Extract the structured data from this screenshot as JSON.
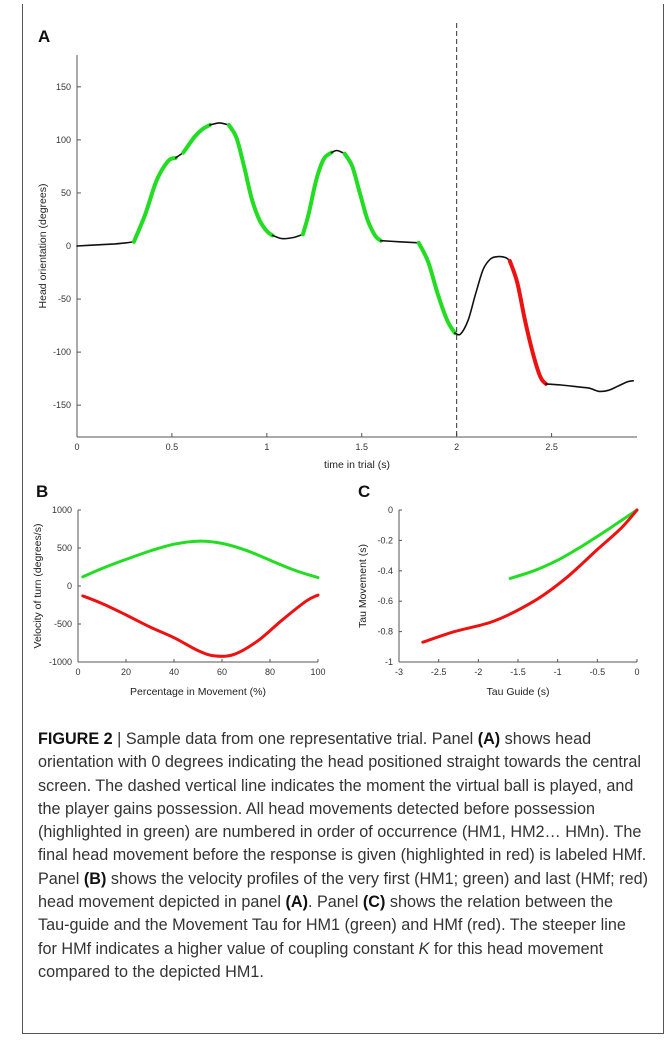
{
  "panels": {
    "a": {
      "label": "A"
    },
    "b": {
      "label": "B"
    },
    "c": {
      "label": "C"
    }
  },
  "colors": {
    "green": "#22dd22",
    "red": "#ee1111",
    "black": "#111111",
    "axis": "#555555"
  },
  "chart_data": [
    {
      "id": "A",
      "type": "line",
      "xlabel": "time in trial (s)",
      "ylabel": "Head orientation (degrees)",
      "xlim": [
        0,
        2.95
      ],
      "ylim": [
        -180,
        180
      ],
      "xticks": [
        0,
        0.5,
        1,
        1.5,
        2,
        2.5
      ],
      "yticks": [
        -150,
        -100,
        -50,
        0,
        50,
        100,
        150
      ],
      "xtick_labels": [
        "0",
        "0.5",
        "1",
        "1.5",
        "2",
        "2.5"
      ],
      "ytick_labels": [
        "-150",
        "-100",
        "-50",
        "0",
        "50",
        "100",
        "150"
      ],
      "vline": {
        "x": 2.0,
        "style": "dashed"
      },
      "series": [
        {
          "color": "black",
          "x": [
            0,
            0.1,
            0.2,
            0.26,
            0.3
          ],
          "y": [
            0,
            1,
            2,
            3,
            4
          ]
        },
        {
          "color": "green",
          "x": [
            0.3,
            0.36,
            0.42,
            0.48,
            0.52
          ],
          "y": [
            4,
            30,
            62,
            80,
            83
          ]
        },
        {
          "color": "black",
          "x": [
            0.52,
            0.56
          ],
          "y": [
            83,
            88
          ]
        },
        {
          "color": "green",
          "x": [
            0.56,
            0.62,
            0.66,
            0.7
          ],
          "y": [
            88,
            103,
            110,
            114
          ]
        },
        {
          "color": "black",
          "x": [
            0.7,
            0.75,
            0.8
          ],
          "y": [
            114,
            116,
            114
          ]
        },
        {
          "color": "green",
          "x": [
            0.8,
            0.84,
            0.88,
            0.92,
            0.96,
            1.0,
            1.03
          ],
          "y": [
            114,
            102,
            75,
            45,
            25,
            14,
            10
          ]
        },
        {
          "color": "black",
          "x": [
            1.03,
            1.08,
            1.14,
            1.19
          ],
          "y": [
            10,
            7,
            8,
            11
          ]
        },
        {
          "color": "green",
          "x": [
            1.19,
            1.22,
            1.26,
            1.3,
            1.34
          ],
          "y": [
            11,
            30,
            62,
            82,
            88
          ]
        },
        {
          "color": "black",
          "x": [
            1.34,
            1.37,
            1.41
          ],
          "y": [
            88,
            90,
            87
          ]
        },
        {
          "color": "green",
          "x": [
            1.41,
            1.45,
            1.49,
            1.53,
            1.57,
            1.6
          ],
          "y": [
            87,
            75,
            50,
            25,
            10,
            5
          ]
        },
        {
          "color": "black",
          "x": [
            1.6,
            1.7,
            1.8
          ],
          "y": [
            5,
            4,
            3
          ]
        },
        {
          "color": "green",
          "x": [
            1.8,
            1.85,
            1.9,
            1.95,
            1.99
          ],
          "y": [
            3,
            -15,
            -45,
            -70,
            -82
          ]
        },
        {
          "color": "black",
          "x": [
            1.99,
            2.02,
            2.06,
            2.1,
            2.14,
            2.18,
            2.22,
            2.26,
            2.28
          ],
          "y": [
            -82,
            -83,
            -70,
            -45,
            -22,
            -12,
            -10,
            -11,
            -14
          ]
        },
        {
          "color": "red",
          "x": [
            2.28,
            2.32,
            2.36,
            2.4,
            2.44,
            2.47
          ],
          "y": [
            -14,
            -35,
            -70,
            -100,
            -123,
            -130
          ]
        },
        {
          "color": "black",
          "x": [
            2.47,
            2.55,
            2.65,
            2.7,
            2.75,
            2.8,
            2.85,
            2.9,
            2.93
          ],
          "y": [
            -130,
            -131,
            -133,
            -134,
            -137,
            -136,
            -132,
            -128,
            -127
          ]
        }
      ]
    },
    {
      "id": "B",
      "type": "line",
      "xlabel": "Percentage in Movement (%)",
      "ylabel": "Velocity of turn (degrees/s)",
      "xlim": [
        0,
        100
      ],
      "ylim": [
        -1000,
        1000
      ],
      "xticks": [
        0,
        20,
        40,
        60,
        80,
        100
      ],
      "yticks": [
        -1000,
        -500,
        0,
        500,
        1000
      ],
      "xtick_labels": [
        "0",
        "20",
        "40",
        "60",
        "80",
        "100"
      ],
      "ytick_labels": [
        "-1000",
        "-500",
        "0",
        "500",
        "1000"
      ],
      "series": [
        {
          "color": "green",
          "x": [
            2,
            10,
            20,
            30,
            40,
            50,
            60,
            70,
            80,
            90,
            100
          ],
          "y": [
            120,
            230,
            350,
            460,
            550,
            590,
            560,
            470,
            340,
            210,
            110
          ]
        },
        {
          "color": "red",
          "x": [
            2,
            10,
            20,
            30,
            40,
            50,
            57,
            65,
            75,
            85,
            95,
            100
          ],
          "y": [
            -130,
            -230,
            -380,
            -540,
            -680,
            -850,
            -920,
            -900,
            -720,
            -450,
            -200,
            -120
          ]
        }
      ]
    },
    {
      "id": "C",
      "type": "line",
      "xlabel": "Tau Guide (s)",
      "ylabel": "Tau Movement (s)",
      "xlim": [
        -3,
        0
      ],
      "ylim": [
        -1,
        0
      ],
      "xticks": [
        -3,
        -2.5,
        -2,
        -1.5,
        -1,
        -0.5,
        0
      ],
      "yticks": [
        -1,
        -0.8,
        -0.6,
        -0.4,
        -0.2,
        0
      ],
      "xtick_labels": [
        "-3",
        "-2.5",
        "-2",
        "-1.5",
        "-1",
        "-0.5",
        "0"
      ],
      "ytick_labels": [
        "-1",
        "-0.8",
        "-0.6",
        "-0.4",
        "-0.2",
        "0"
      ],
      "series": [
        {
          "color": "green",
          "x": [
            -1.6,
            -1.3,
            -1.0,
            -0.7,
            -0.4,
            -0.2,
            0
          ],
          "y": [
            -0.45,
            -0.4,
            -0.33,
            -0.24,
            -0.14,
            -0.07,
            0
          ]
        },
        {
          "color": "red",
          "x": [
            -2.7,
            -2.3,
            -1.8,
            -1.3,
            -0.9,
            -0.5,
            -0.2,
            0
          ],
          "y": [
            -0.87,
            -0.8,
            -0.73,
            -0.6,
            -0.45,
            -0.26,
            -0.12,
            0
          ]
        }
      ]
    }
  ],
  "caption": {
    "figure_label": "FIGURE 2",
    "separator": "|",
    "s1": " Sample data from one representative trial. Panel ",
    "p1": "(A)",
    "s2": " shows head orientation with 0 degrees indicating the head positioned straight towards the central screen. The dashed vertical line indicates the moment the virtual ball is played, and the player gains possession. All head movements detected before possession (highlighted in green) are numbered in order of occurrence (HM1, HM2… HMn). The final head movement before the response is given (highlighted in red) is labeled HMf. Panel ",
    "p2": "(B)",
    "s3": " shows the velocity profiles of the very first (HM1; green) and last (HMf; red) head movement depicted in panel ",
    "p3": "(A)",
    "s4": ". Panel ",
    "p4": "(C)",
    "s5": " shows the relation between the Tau-guide and the Movement Tau for HM1 (green) and HMf (red). The steeper line for HMf indicates a higher value of coupling constant ",
    "k": "K",
    "s6": " for this head movement compared to the depicted HM1."
  }
}
